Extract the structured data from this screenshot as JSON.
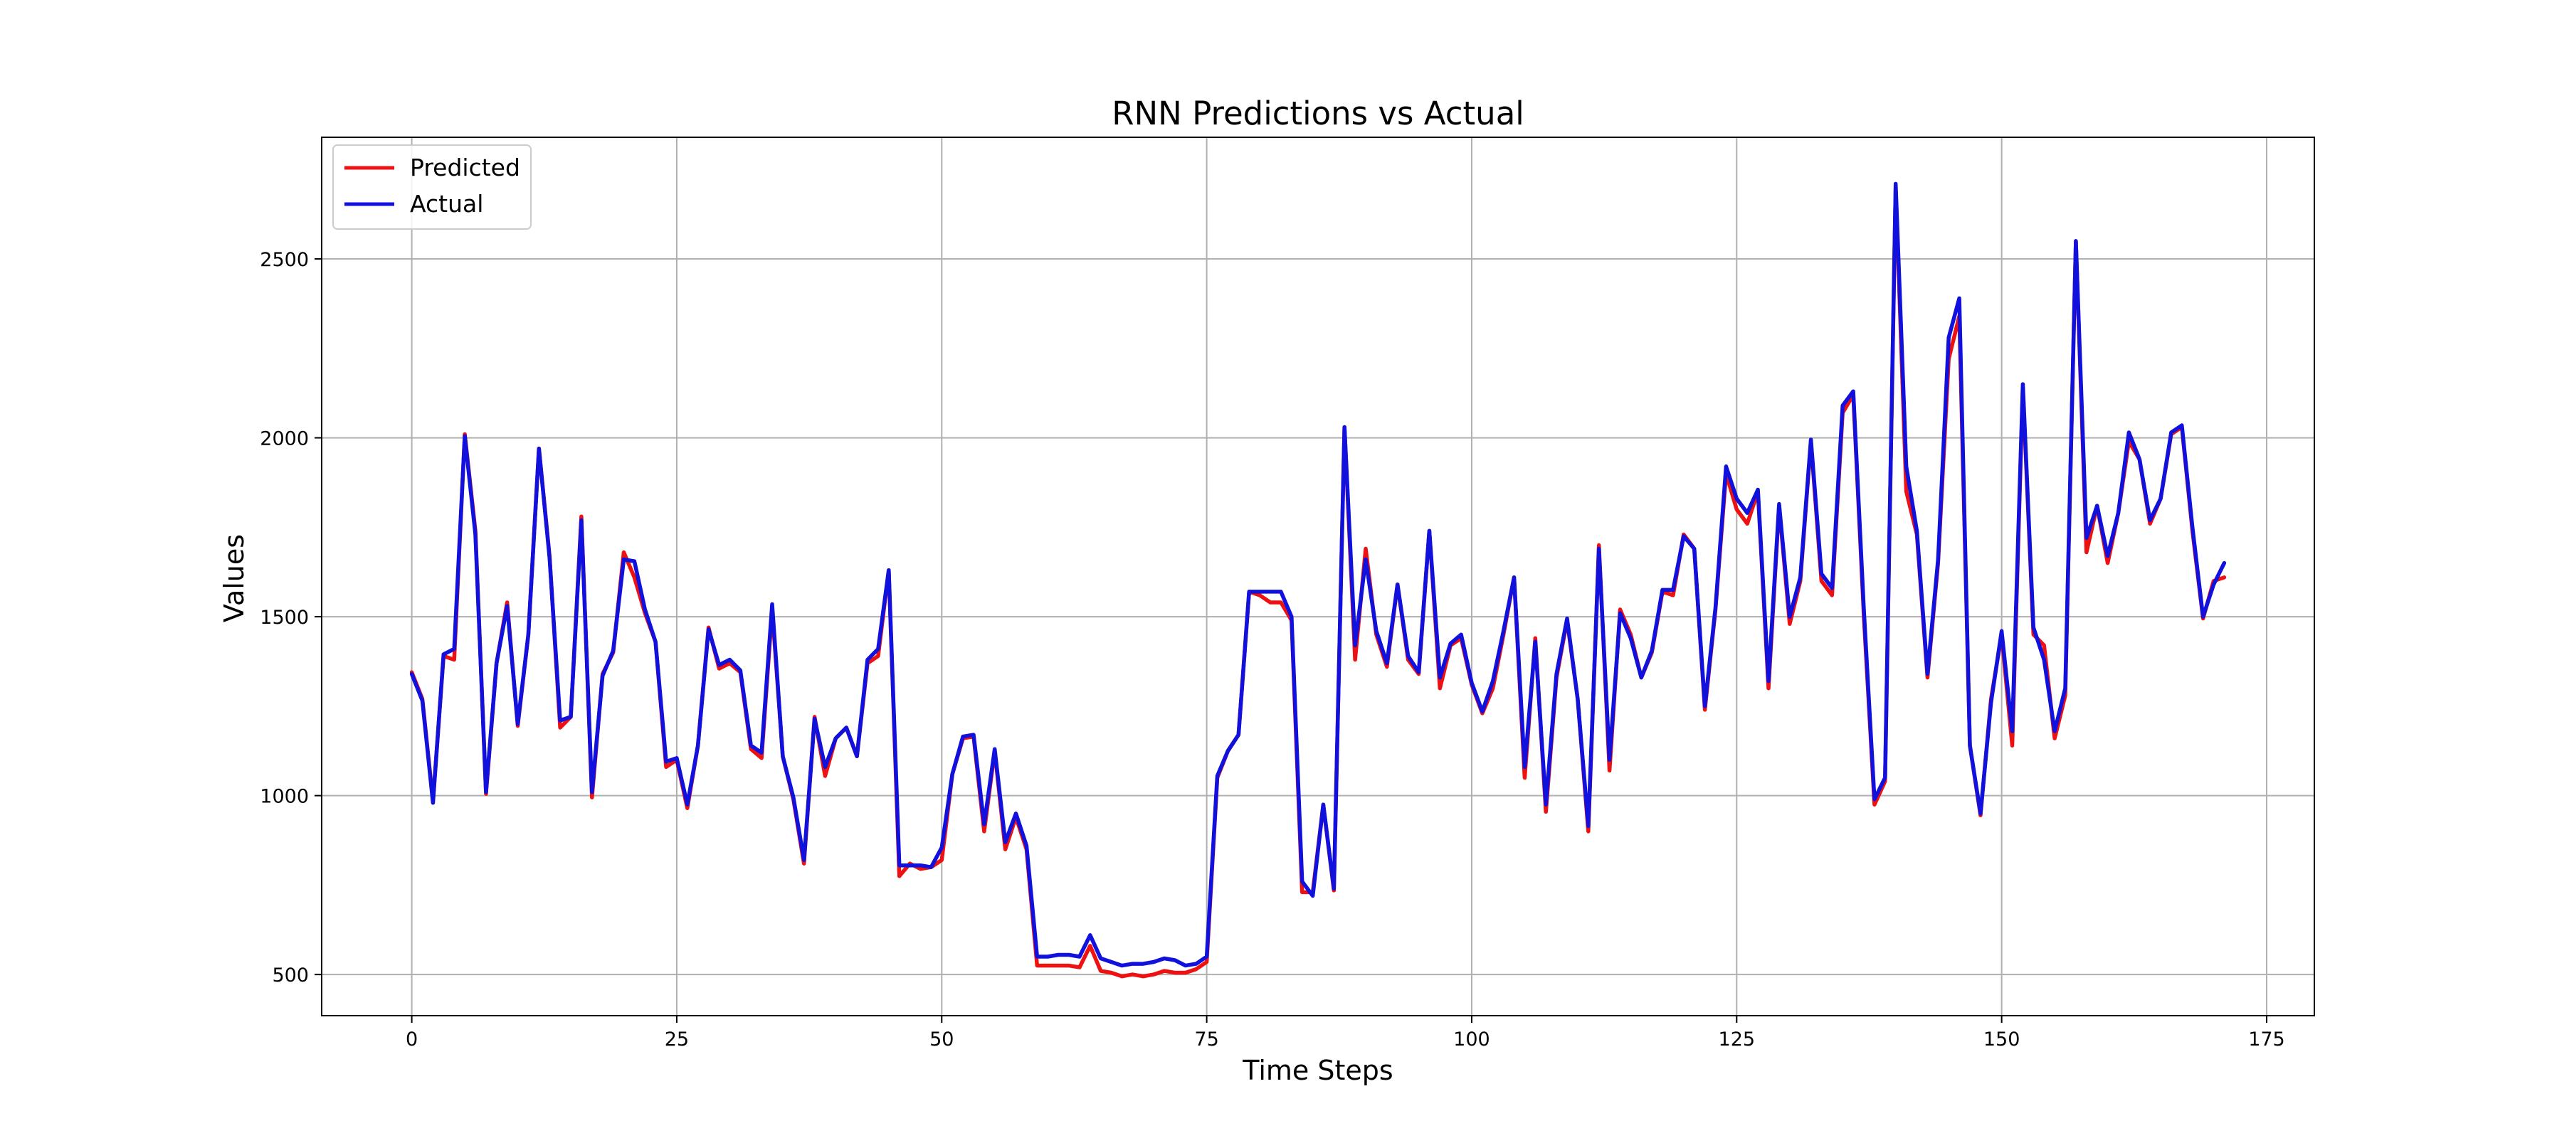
{
  "chart_data": {
    "type": "line",
    "title": "RNN Predictions vs Actual",
    "xlabel": "Time Steps",
    "ylabel": "Values",
    "xlim": [
      -8.5,
      179.5
    ],
    "ylim": [
      385,
      2840
    ],
    "xticks": [
      0,
      25,
      50,
      75,
      100,
      125,
      150,
      175
    ],
    "yticks": [
      500,
      1000,
      1500,
      2000,
      2500
    ],
    "grid": true,
    "legend": "top-left",
    "series": [
      {
        "name": "Predicted",
        "color": "#ee1111",
        "values": [
          1345,
          1270,
          985,
          1390,
          1380,
          2010,
          1740,
          1005,
          1370,
          1540,
          1195,
          1450,
          1970,
          1670,
          1190,
          1220,
          1780,
          995,
          1340,
          1400,
          1680,
          1610,
          1510,
          1430,
          1080,
          1100,
          965,
          1140,
          1470,
          1355,
          1370,
          1345,
          1130,
          1105,
          1520,
          1110,
          990,
          810,
          1220,
          1055,
          1160,
          1190,
          1110,
          1370,
          1390,
          1630,
          775,
          810,
          795,
          800,
          820,
          1060,
          1160,
          1165,
          900,
          1125,
          850,
          940,
          850,
          525,
          525,
          525,
          525,
          520,
          580,
          510,
          505,
          495,
          500,
          495,
          500,
          510,
          505,
          505,
          515,
          535,
          1050,
          1125,
          1170,
          1570,
          1560,
          1540,
          1540,
          1490,
          730,
          730,
          975,
          735,
          2030,
          1380,
          1690,
          1450,
          1360,
          1590,
          1380,
          1340,
          1740,
          1300,
          1420,
          1440,
          1310,
          1230,
          1300,
          1450,
          1610,
          1050,
          1440,
          955,
          1330,
          1490,
          1270,
          900,
          1700,
          1070,
          1520,
          1450,
          1330,
          1400,
          1570,
          1560,
          1730,
          1690,
          1240,
          1520,
          1900,
          1800,
          1760,
          1850,
          1300,
          1810,
          1480,
          1600,
          1990,
          1600,
          1560,
          2070,
          2120,
          1500,
          975,
          1040,
          2700,
          1850,
          1730,
          1330,
          1650,
          2220,
          2340,
          1140,
          945,
          1270,
          1450,
          1140,
          2140,
          1450,
          1420,
          1160,
          1280,
          2550,
          1680,
          1810,
          1650,
          1790,
          1990,
          1940,
          1760,
          1830,
          2010,
          2030,
          1740,
          1495,
          1600,
          1610
        ]
      },
      {
        "name": "Actual",
        "color": "#1111dd",
        "values": [
          1340,
          1265,
          980,
          1395,
          1410,
          2005,
          1730,
          1010,
          1370,
          1530,
          1200,
          1450,
          1970,
          1665,
          1210,
          1220,
          1770,
          1010,
          1335,
          1405,
          1660,
          1655,
          1520,
          1430,
          1095,
          1105,
          975,
          1140,
          1465,
          1365,
          1380,
          1350,
          1140,
          1120,
          1535,
          1110,
          995,
          820,
          1215,
          1080,
          1160,
          1190,
          1110,
          1380,
          1410,
          1630,
          805,
          805,
          805,
          800,
          855,
          1060,
          1165,
          1170,
          920,
          1130,
          870,
          950,
          860,
          550,
          550,
          555,
          555,
          550,
          610,
          545,
          535,
          525,
          530,
          530,
          535,
          545,
          540,
          525,
          530,
          550,
          1055,
          1125,
          1170,
          1570,
          1570,
          1570,
          1570,
          1500,
          760,
          720,
          975,
          740,
          2030,
          1420,
          1660,
          1460,
          1370,
          1590,
          1390,
          1345,
          1740,
          1330,
          1425,
          1450,
          1315,
          1235,
          1320,
          1460,
          1610,
          1080,
          1430,
          975,
          1340,
          1495,
          1270,
          915,
          1690,
          1100,
          1510,
          1440,
          1330,
          1405,
          1575,
          1575,
          1725,
          1690,
          1250,
          1525,
          1920,
          1830,
          1790,
          1855,
          1320,
          1815,
          1500,
          1610,
          1995,
          1620,
          1580,
          2090,
          2130,
          1520,
          990,
          1050,
          2710,
          1920,
          1740,
          1340,
          1660,
          2280,
          2390,
          1140,
          950,
          1260,
          1460,
          1180,
          2150,
          1470,
          1380,
          1180,
          1300,
          2550,
          1720,
          1810,
          1670,
          1790,
          2015,
          1940,
          1770,
          1830,
          2015,
          2035,
          1750,
          1500,
          1590,
          1650
        ]
      }
    ]
  }
}
